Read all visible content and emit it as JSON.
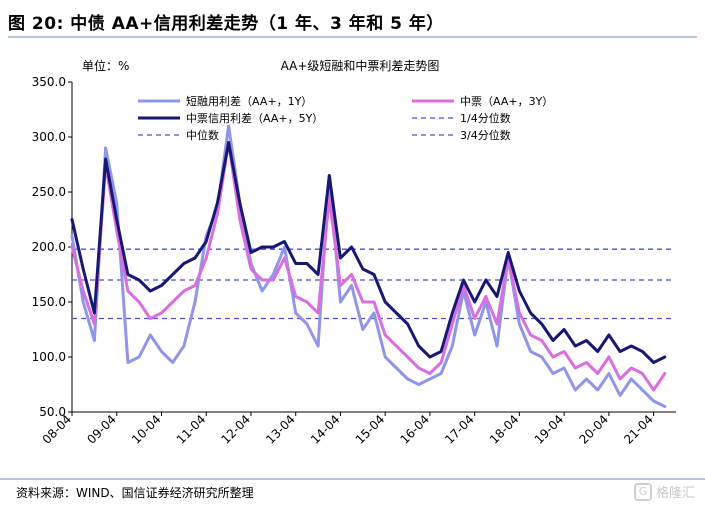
{
  "header": {
    "title": "图  20:  中债 AA+信用利差走势（1 年、3 年和 5 年）"
  },
  "source": {
    "text": "资料来源：WIND、国信证券经济研究所整理"
  },
  "watermark": {
    "text": "格隆汇",
    "icon": "logo-mark-icon"
  },
  "chart_data": {
    "type": "line",
    "title": "AA+级短融和中票利差走势图",
    "unit_label": "单位：%",
    "x_categories": [
      "08-04",
      "09-04",
      "10-04",
      "11-04",
      "12-04",
      "13-04",
      "14-04",
      "15-04",
      "16-04",
      "17-04",
      "18-04",
      "19-04",
      "20-04",
      "21-04"
    ],
    "ylim": [
      50,
      350
    ],
    "yticks": [
      "50.0",
      "100.0",
      "150.0",
      "200.0",
      "250.0",
      "300.0",
      "350.0"
    ],
    "grid": false,
    "legend_position": "top",
    "series": [
      {
        "name": "短融用利差（AA+，1Y）",
        "color": "#8f96ea",
        "x": [
          2008.25,
          2008.5,
          2008.75,
          2009.0,
          2009.25,
          2009.5,
          2009.75,
          2010.0,
          2010.25,
          2010.5,
          2010.75,
          2011.0,
          2011.25,
          2011.5,
          2011.75,
          2012.0,
          2012.25,
          2012.5,
          2012.75,
          2013.0,
          2013.25,
          2013.5,
          2013.75,
          2014.0,
          2014.25,
          2014.5,
          2014.75,
          2015.0,
          2015.25,
          2015.5,
          2015.75,
          2016.0,
          2016.25,
          2016.5,
          2016.75,
          2017.0,
          2017.25,
          2017.5,
          2017.75,
          2018.0,
          2018.25,
          2018.5,
          2018.75,
          2019.0,
          2019.25,
          2019.5,
          2019.75,
          2020.0,
          2020.25,
          2020.5,
          2020.75,
          2021.0,
          2021.25,
          2021.5
        ],
        "values": [
          210,
          150,
          115,
          290,
          240,
          95,
          100,
          120,
          105,
          95,
          110,
          150,
          210,
          235,
          310,
          240,
          185,
          160,
          175,
          200,
          140,
          130,
          110,
          265,
          150,
          165,
          125,
          140,
          100,
          90,
          80,
          75,
          80,
          85,
          110,
          160,
          120,
          150,
          110,
          190,
          130,
          105,
          100,
          85,
          90,
          70,
          80,
          70,
          85,
          65,
          80,
          70,
          60,
          55
        ]
      },
      {
        "name": "中票（AA+，3Y）",
        "color": "#d96ee0",
        "x": [
          2008.25,
          2008.5,
          2008.75,
          2009.0,
          2009.25,
          2009.5,
          2009.75,
          2010.0,
          2010.25,
          2010.5,
          2010.75,
          2011.0,
          2011.25,
          2011.5,
          2011.75,
          2012.0,
          2012.25,
          2012.5,
          2012.75,
          2013.0,
          2013.25,
          2013.5,
          2013.75,
          2014.0,
          2014.25,
          2014.5,
          2014.75,
          2015.0,
          2015.25,
          2015.5,
          2015.75,
          2016.0,
          2016.25,
          2016.5,
          2016.75,
          2017.0,
          2017.25,
          2017.5,
          2017.75,
          2018.0,
          2018.25,
          2018.5,
          2018.75,
          2019.0,
          2019.25,
          2019.5,
          2019.75,
          2020.0,
          2020.25,
          2020.5,
          2020.75,
          2021.0,
          2021.25,
          2021.5
        ],
        "values": [
          200,
          160,
          130,
          275,
          215,
          160,
          150,
          135,
          140,
          150,
          160,
          165,
          190,
          230,
          295,
          225,
          180,
          170,
          170,
          190,
          155,
          150,
          140,
          245,
          165,
          175,
          150,
          150,
          120,
          110,
          100,
          90,
          85,
          95,
          130,
          165,
          135,
          155,
          130,
          190,
          140,
          120,
          115,
          100,
          105,
          90,
          95,
          85,
          100,
          80,
          90,
          85,
          70,
          85
        ]
      },
      {
        "name": "中票信用利差（AA+，5Y）",
        "color": "#161874",
        "x": [
          2008.25,
          2008.5,
          2008.75,
          2009.0,
          2009.25,
          2009.5,
          2009.75,
          2010.0,
          2010.25,
          2010.5,
          2010.75,
          2011.0,
          2011.25,
          2011.5,
          2011.75,
          2012.0,
          2012.25,
          2012.5,
          2012.75,
          2013.0,
          2013.25,
          2013.5,
          2013.75,
          2014.0,
          2014.25,
          2014.5,
          2014.75,
          2015.0,
          2015.25,
          2015.5,
          2015.75,
          2016.0,
          2016.25,
          2016.5,
          2016.75,
          2017.0,
          2017.25,
          2017.5,
          2017.75,
          2018.0,
          2018.25,
          2018.5,
          2018.75,
          2019.0,
          2019.25,
          2019.5,
          2019.75,
          2020.0,
          2020.25,
          2020.5,
          2020.75,
          2021.0,
          2021.25,
          2021.5
        ],
        "values": [
          225,
          180,
          140,
          280,
          225,
          175,
          170,
          160,
          165,
          175,
          185,
          190,
          205,
          240,
          295,
          240,
          195,
          200,
          200,
          205,
          185,
          185,
          175,
          265,
          190,
          200,
          180,
          175,
          150,
          140,
          130,
          110,
          100,
          105,
          140,
          170,
          150,
          170,
          155,
          195,
          160,
          140,
          130,
          115,
          125,
          110,
          115,
          105,
          120,
          105,
          110,
          105,
          95,
          100
        ]
      },
      {
        "name": "1/4分位数",
        "color": "#4a4fd1",
        "style": "dashed",
        "constant": 135
      },
      {
        "name": "中位数",
        "color": "#4a4fd1",
        "style": "dashed",
        "constant": 170
      },
      {
        "name": "3/4分位数",
        "color": "#4a4fd1",
        "style": "dashed",
        "constant": 198
      }
    ]
  }
}
